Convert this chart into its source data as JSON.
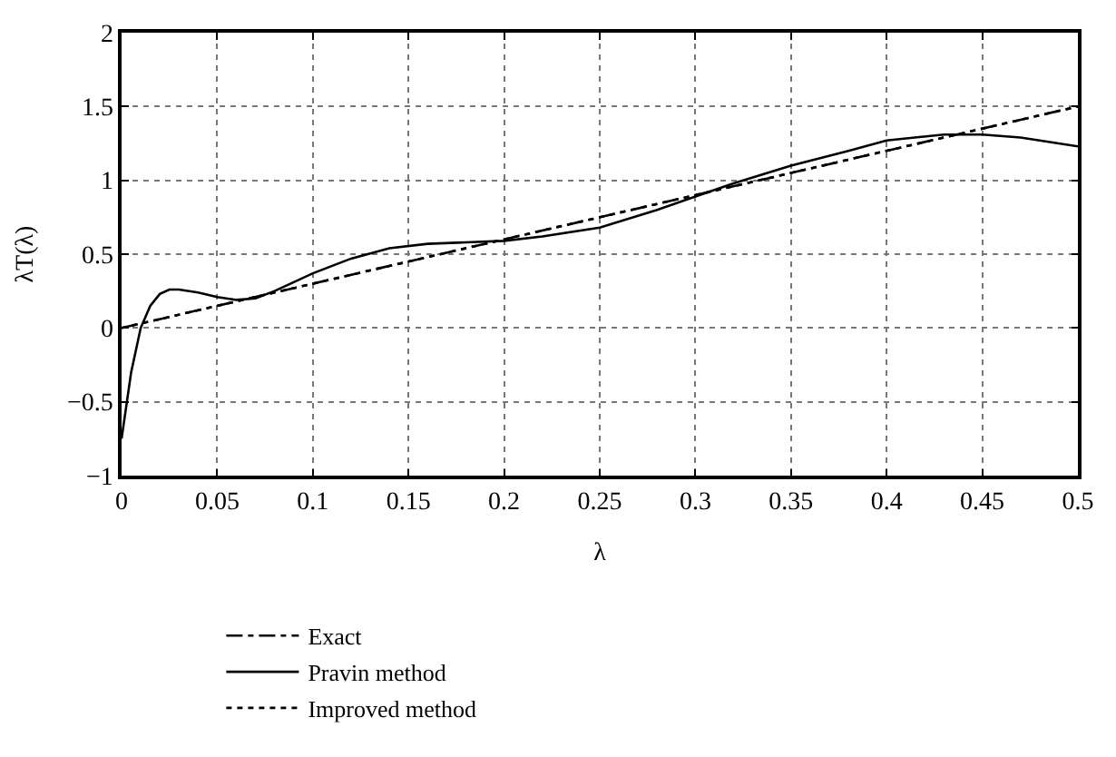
{
  "chart_data": {
    "type": "line",
    "xlabel": "λ",
    "ylabel": "λT(λ)",
    "xlim": [
      0,
      0.5
    ],
    "ylim": [
      -1,
      2
    ],
    "xticks": [
      0,
      0.05,
      0.1,
      0.15,
      0.2,
      0.25,
      0.3,
      0.35,
      0.4,
      0.45,
      0.5
    ],
    "yticks": [
      -1,
      -0.5,
      0,
      0.5,
      1,
      1.5,
      2
    ],
    "grid": true,
    "legend": "bottom",
    "series": [
      {
        "name": "Exact",
        "color": "#000000",
        "line_style": "dashdot",
        "x": [
          0,
          0.5
        ],
        "values": [
          0,
          1.5
        ]
      },
      {
        "name": "Pravin method",
        "color": "#000000",
        "line_style": "solid",
        "x": [
          0,
          0.005,
          0.01,
          0.015,
          0.02,
          0.025,
          0.03,
          0.04,
          0.05,
          0.06,
          0.07,
          0.08,
          0.1,
          0.12,
          0.14,
          0.16,
          0.18,
          0.2,
          0.22,
          0.25,
          0.28,
          0.3,
          0.32,
          0.35,
          0.38,
          0.4,
          0.43,
          0.45,
          0.47,
          0.5
        ],
        "values": [
          -0.75,
          -0.3,
          0.0,
          0.15,
          0.23,
          0.26,
          0.26,
          0.24,
          0.21,
          0.19,
          0.2,
          0.25,
          0.37,
          0.47,
          0.54,
          0.57,
          0.58,
          0.59,
          0.62,
          0.68,
          0.8,
          0.89,
          0.98,
          1.1,
          1.2,
          1.27,
          1.31,
          1.31,
          1.29,
          1.23
        ]
      },
      {
        "name": "Improved method",
        "color": "#000000",
        "line_style": "dotted",
        "x": [
          0,
          0.5
        ],
        "values": [
          0,
          1.5
        ]
      }
    ]
  }
}
